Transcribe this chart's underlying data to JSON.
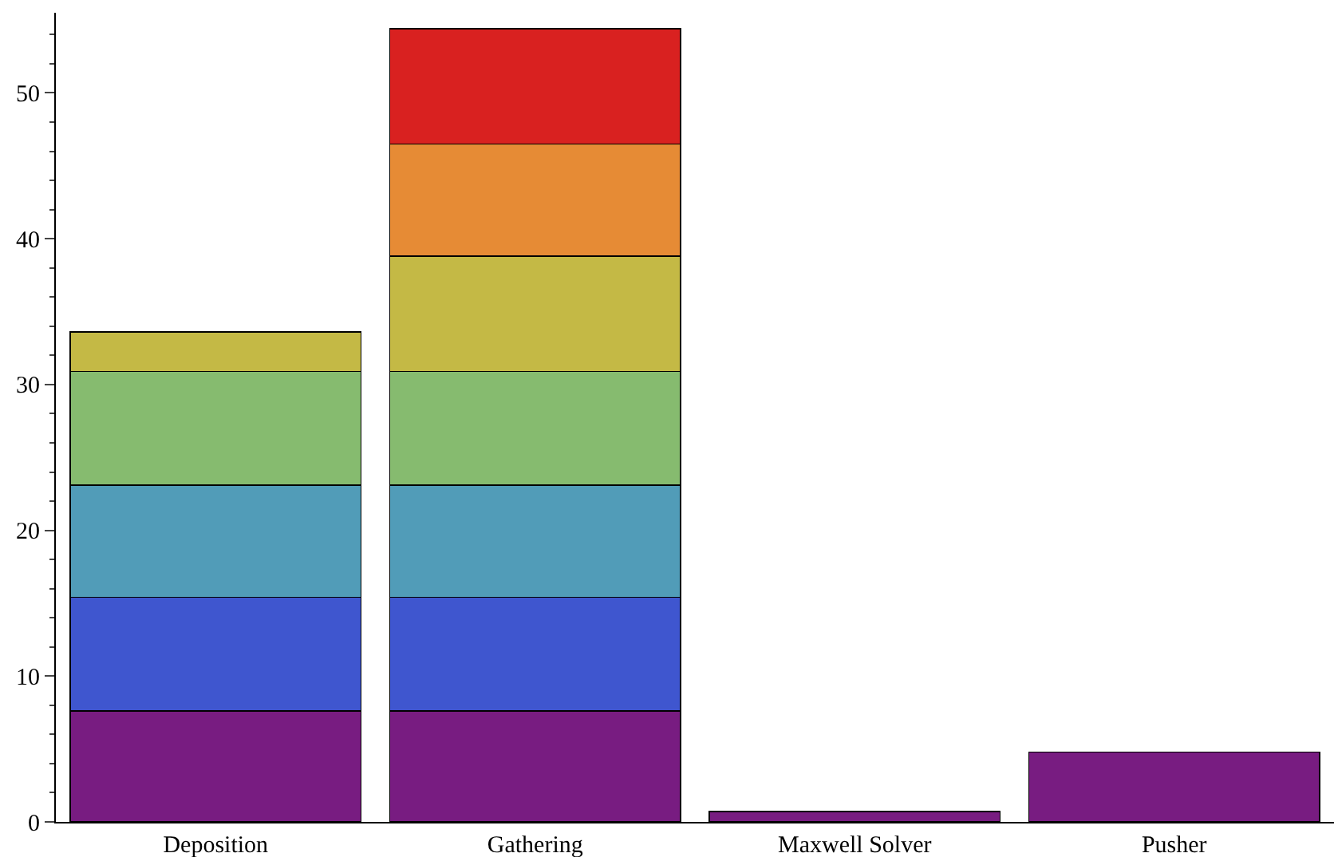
{
  "chart_data": {
    "type": "bar",
    "stacked": true,
    "categories": [
      "Deposition",
      "Gathering",
      "Maxwell Solver",
      "Pusher"
    ],
    "series": [
      {
        "color": "#781c81",
        "values": [
          7.6,
          7.6,
          0.7,
          4.8
        ]
      },
      {
        "color": "#3f56cf",
        "values": [
          7.8,
          7.8,
          null,
          null
        ]
      },
      {
        "color": "#519cb8",
        "values": [
          7.7,
          7.7,
          null,
          null
        ]
      },
      {
        "color": "#86bb6f",
        "values": [
          7.8,
          7.8,
          null,
          null
        ]
      },
      {
        "color": "#c4b945",
        "values": [
          2.7,
          7.9,
          null,
          null
        ]
      },
      {
        "color": "#e68b35",
        "values": [
          null,
          7.7,
          null,
          null
        ]
      },
      {
        "color": "#d92120",
        "values": [
          null,
          7.9,
          null,
          null
        ]
      }
    ],
    "ylim": [
      0,
      55.5
    ],
    "yticks": [
      0,
      10,
      20,
      30,
      40,
      50
    ],
    "legend": false
  }
}
